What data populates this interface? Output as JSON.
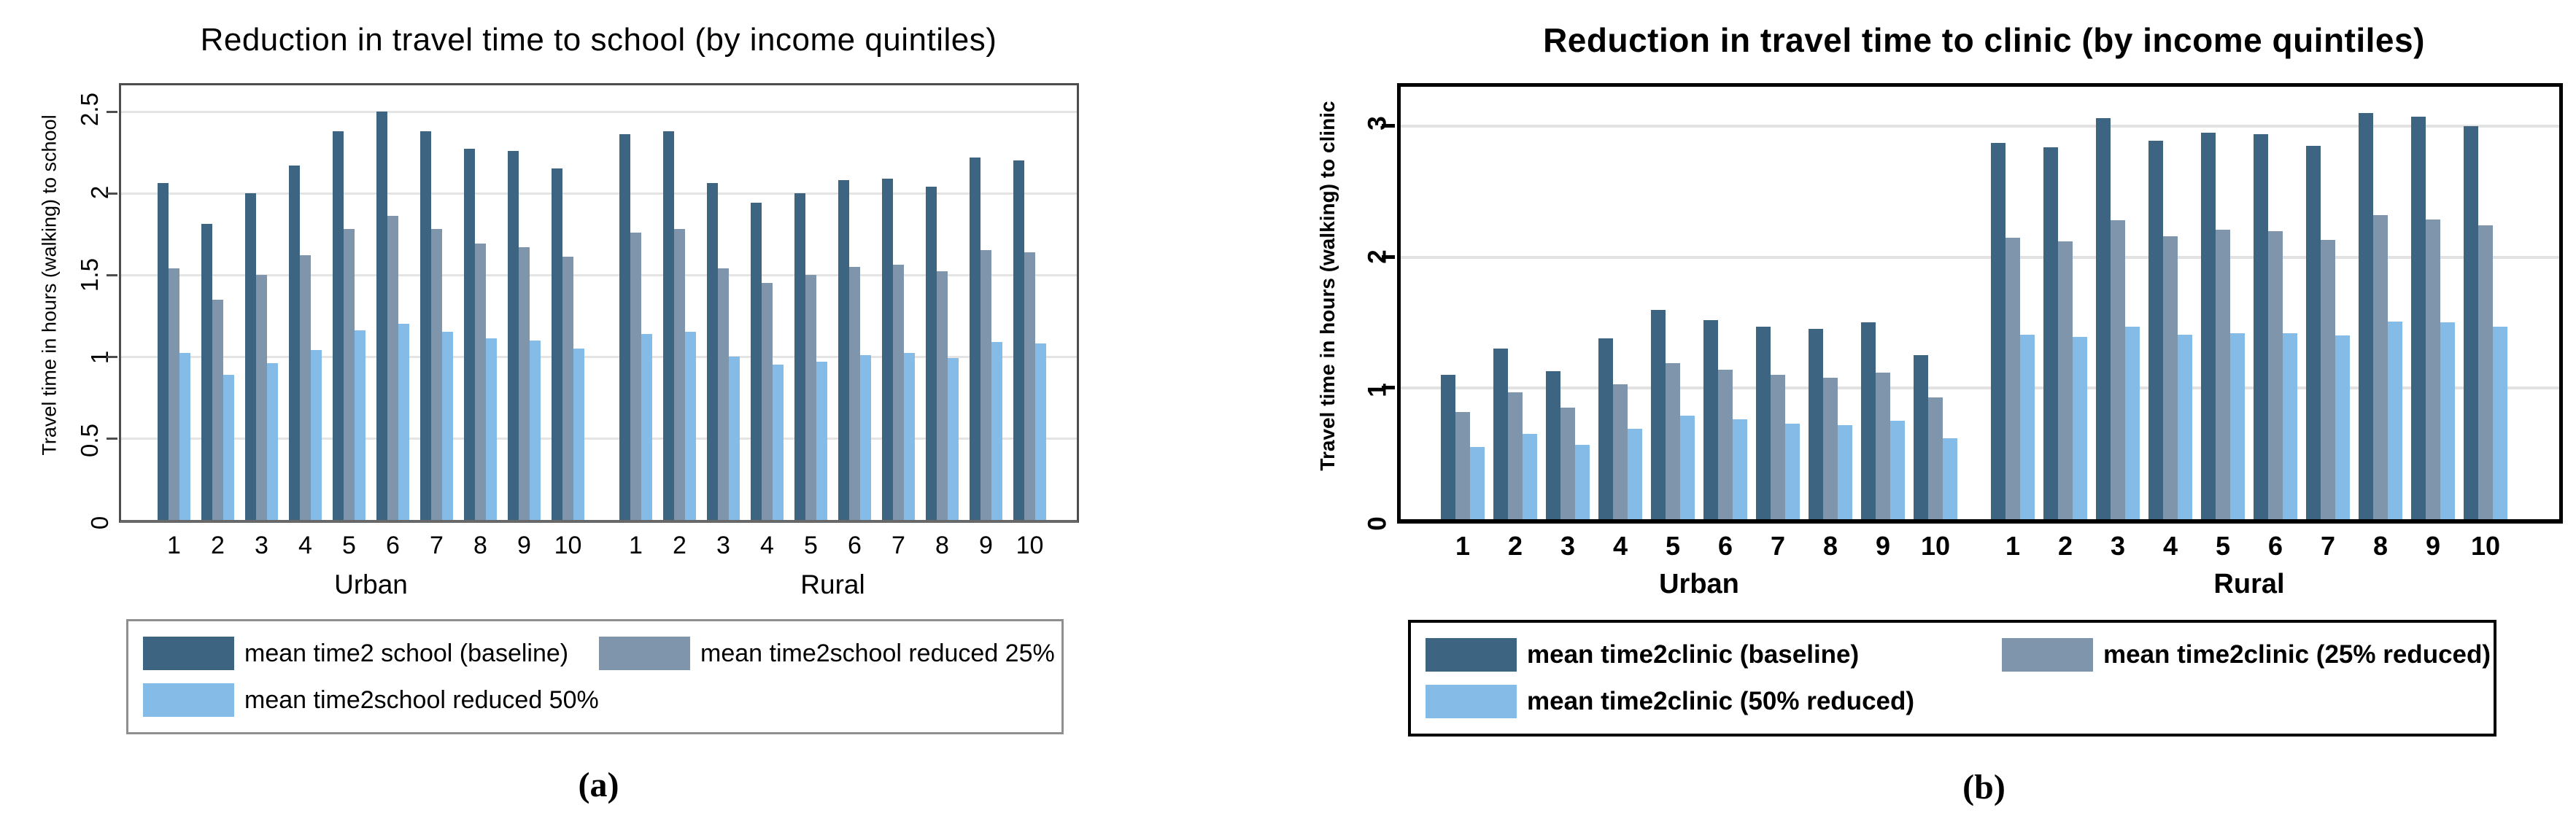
{
  "chart_data": [
    {
      "type": "bar",
      "title": "Reduction in travel time to school (by income quintiles)",
      "ylabel": "Travel time in hours (walking) to school",
      "xlabel": "",
      "panel_label": "(a)",
      "ylim": [
        0,
        2.66
      ],
      "yticks": [
        0,
        0.5,
        1,
        1.5,
        2,
        2.5
      ],
      "ytick_labels": [
        "0",
        "0.5",
        "1",
        "1.5",
        "2",
        "2.5"
      ],
      "grid": true,
      "grid_color": "#e4e4e4",
      "legend_position": "bottom",
      "sections": [
        {
          "label": "Urban",
          "categories": [
            "1",
            "2",
            "3",
            "4",
            "5",
            "6",
            "7",
            "8",
            "9",
            "10"
          ]
        },
        {
          "label": "Rural",
          "categories": [
            "1",
            "2",
            "3",
            "4",
            "5",
            "6",
            "7",
            "8",
            "9",
            "10"
          ]
        }
      ],
      "series": [
        {
          "name": "mean time2 school (baseline)",
          "color": "#3d6480",
          "values": [
            [
              2.06,
              1.81,
              2.0,
              2.17,
              2.38,
              2.5,
              2.38,
              2.27,
              2.26,
              2.15
            ],
            [
              2.36,
              2.38,
              2.06,
              1.94,
              2.0,
              2.08,
              2.09,
              2.04,
              2.22,
              2.2
            ]
          ]
        },
        {
          "name": "mean time2school reduced 25%",
          "color": "#7e95ab",
          "values": [
            [
              1.54,
              1.35,
              1.5,
              1.62,
              1.78,
              1.86,
              1.78,
              1.69,
              1.67,
              1.61
            ],
            [
              1.76,
              1.78,
              1.54,
              1.45,
              1.5,
              1.55,
              1.56,
              1.52,
              1.65,
              1.64
            ]
          ]
        },
        {
          "name": "mean time2school reduced 50%",
          "color": "#84bce7",
          "values": [
            [
              1.02,
              0.89,
              0.96,
              1.04,
              1.16,
              1.2,
              1.15,
              1.11,
              1.1,
              1.05
            ],
            [
              1.14,
              1.15,
              1.0,
              0.95,
              0.97,
              1.01,
              1.02,
              0.99,
              1.09,
              1.08
            ]
          ]
        }
      ],
      "legend_layout": [
        [
          0,
          1
        ],
        [
          2
        ]
      ]
    },
    {
      "type": "bar",
      "title": "Reduction in travel time to clinic (by income quintiles)",
      "ylabel": "Travel time in hours (walking) to clinic",
      "xlabel": "",
      "panel_label": "(b)",
      "ylim": [
        0,
        3.3
      ],
      "yticks": [
        0,
        1,
        2,
        3
      ],
      "ytick_labels": [
        "0",
        "1",
        "2",
        "3"
      ],
      "grid": true,
      "grid_color": "#e2e2e2",
      "legend_position": "bottom",
      "sections": [
        {
          "label": "Urban",
          "categories": [
            "1",
            "2",
            "3",
            "4",
            "5",
            "6",
            "7",
            "8",
            "9",
            "10"
          ]
        },
        {
          "label": "Rural",
          "categories": [
            "1",
            "2",
            "3",
            "4",
            "5",
            "6",
            "7",
            "8",
            "9",
            "10"
          ]
        }
      ],
      "series": [
        {
          "name": "mean time2clinic (baseline)",
          "color": "#3d6480",
          "values": [
            [
              1.1,
              1.3,
              1.13,
              1.38,
              1.6,
              1.52,
              1.47,
              1.45,
              1.5,
              1.25
            ],
            [
              2.87,
              2.84,
              3.06,
              2.89,
              2.95,
              2.94,
              2.85,
              3.1,
              3.07,
              3.0
            ]
          ]
        },
        {
          "name": "mean time2clinic (25% reduced)",
          "color": "#7e95ab",
          "values": [
            [
              0.82,
              0.97,
              0.85,
              1.03,
              1.19,
              1.14,
              1.1,
              1.08,
              1.12,
              0.93
            ],
            [
              2.15,
              2.12,
              2.28,
              2.16,
              2.21,
              2.2,
              2.13,
              2.32,
              2.29,
              2.24
            ]
          ]
        },
        {
          "name": "mean time2clinic (50% reduced)",
          "color": "#84bce7",
          "values": [
            [
              0.55,
              0.65,
              0.57,
              0.69,
              0.79,
              0.76,
              0.73,
              0.72,
              0.75,
              0.62
            ],
            [
              1.41,
              1.39,
              1.47,
              1.41,
              1.42,
              1.42,
              1.4,
              1.51,
              1.5,
              1.47
            ]
          ]
        }
      ],
      "legend_layout": [
        [
          0,
          1
        ],
        [
          2
        ]
      ]
    }
  ]
}
